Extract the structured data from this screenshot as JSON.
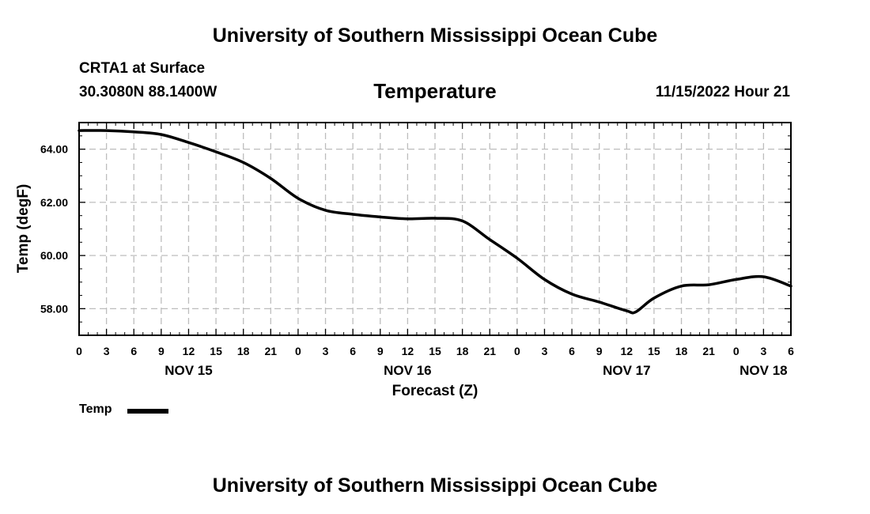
{
  "header": {
    "title_top": "University of Southern Mississippi Ocean Cube",
    "title_bottom": "University of Southern Mississippi Ocean Cube",
    "station": "CRTA1 at Surface",
    "coords": "30.3080N  88.1400W",
    "datetime": "11/15/2022 Hour 21"
  },
  "chart_data": {
    "type": "line",
    "title": "Temperature",
    "xlabel": "Forecast (Z)",
    "ylabel": "Temp (degF)",
    "x_unit": "forecast hours since NOV 15 00Z",
    "xlim": [
      0,
      78
    ],
    "ylim": [
      57.0,
      65.0
    ],
    "y_ticks": [
      58.0,
      60.0,
      62.0,
      64.0
    ],
    "y_tick_labels": [
      "58.00",
      "60.00",
      "62.00",
      "64.00"
    ],
    "x_ticks": [
      0,
      3,
      6,
      9,
      12,
      15,
      18,
      21,
      24,
      27,
      30,
      33,
      36,
      39,
      42,
      45,
      48,
      51,
      54,
      57,
      60,
      63,
      66,
      69,
      72,
      75,
      78
    ],
    "x_tick_labels": [
      "0",
      "3",
      "6",
      "9",
      "12",
      "15",
      "18",
      "21",
      "0",
      "3",
      "6",
      "9",
      "12",
      "15",
      "18",
      "21",
      "0",
      "3",
      "6",
      "9",
      "12",
      "15",
      "18",
      "21",
      "0",
      "3",
      "6"
    ],
    "day_labels": [
      {
        "x": 12,
        "label": "NOV 15"
      },
      {
        "x": 36,
        "label": "NOV 16"
      },
      {
        "x": 60,
        "label": "NOV 17"
      },
      {
        "x": 75,
        "label": "NOV 18"
      }
    ],
    "grid": true,
    "legend": "bottom-left",
    "series": [
      {
        "name": "Temp",
        "color": "#000000",
        "x": [
          0,
          3,
          6,
          9,
          12,
          15,
          18,
          21,
          24,
          27,
          30,
          33,
          36,
          39,
          42,
          45,
          48,
          51,
          54,
          57,
          60,
          61,
          63,
          66,
          69,
          72,
          75,
          78
        ],
        "values": [
          64.7,
          64.7,
          64.65,
          64.55,
          64.25,
          63.9,
          63.5,
          62.9,
          62.15,
          61.7,
          61.55,
          61.45,
          61.38,
          61.4,
          61.3,
          60.6,
          59.9,
          59.1,
          58.55,
          58.25,
          57.92,
          57.88,
          58.4,
          58.85,
          58.9,
          59.1,
          59.2,
          58.85
        ]
      }
    ]
  }
}
